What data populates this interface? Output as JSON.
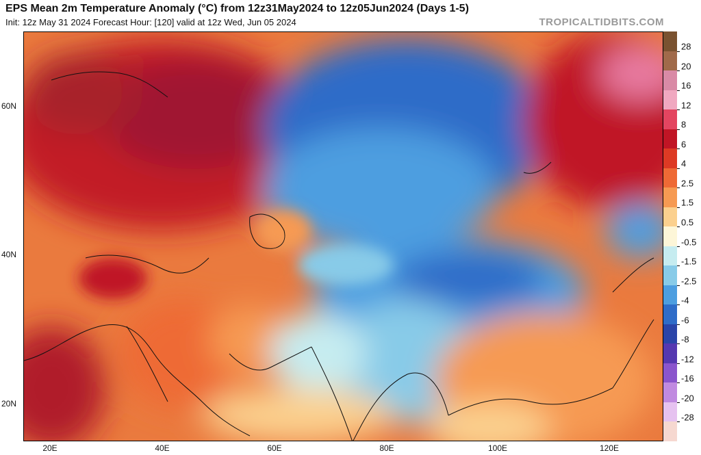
{
  "header": {
    "title": "EPS Mean 2m Temperature Anomaly (°C) from 12z31May2024 to 12z05Jun2024 (Days 1-5)",
    "subtitle": "Init: 12z May 31 2024   Forecast Hour: [120]   valid at 12z Wed, Jun 05 2024",
    "watermark": "TROPICALTIDBITS.COM"
  },
  "map": {
    "lat_labels": [
      "60N",
      "40N",
      "20N"
    ],
    "lon_labels": [
      "20E",
      "40E",
      "60E",
      "80E",
      "100E",
      "120E"
    ]
  },
  "colorbar": {
    "labels": [
      "28",
      "20",
      "16",
      "12",
      "8",
      "6",
      "4",
      "2.5",
      "1.5",
      "0.5",
      "-0.5",
      "-1.5",
      "-2.5",
      "-4",
      "-6",
      "-8",
      "-12",
      "-16",
      "-20",
      "-28"
    ],
    "colors": [
      "#7a5230",
      "#a06a4a",
      "#d98aa6",
      "#f0a8c0",
      "#e34560",
      "#c01525",
      "#dd3a24",
      "#ee6a35",
      "#f69a52",
      "#fbd08e",
      "#fdf6d8",
      "#c6ecf0",
      "#88cbe8",
      "#4d9ee0",
      "#2f6cc8",
      "#2a44a8",
      "#5538b0",
      "#8a55cc",
      "#c08ae0",
      "#e6c2f0",
      "#f6d8d0"
    ]
  }
}
